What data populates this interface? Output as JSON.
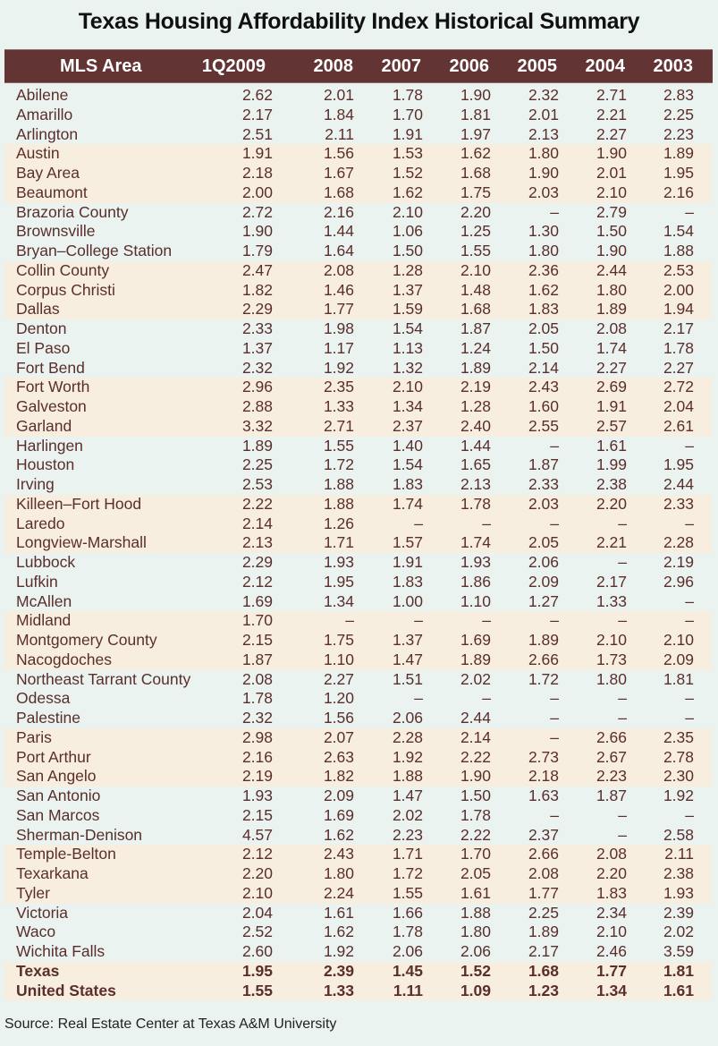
{
  "title": "Texas Housing Affordability Index Historical Summary",
  "header": [
    "MLS Area",
    "1Q2009",
    "2008",
    "2007",
    "2006",
    "2005",
    "2004",
    "2003"
  ],
  "rows": [
    {
      "name": "Abilene",
      "v": [
        "2.62",
        "2.01",
        "1.78",
        "1.90",
        "2.32",
        "2.71",
        "2.83"
      ],
      "band": false
    },
    {
      "name": "Amarillo",
      "v": [
        "2.17",
        "1.84",
        "1.70",
        "1.81",
        "2.01",
        "2.21",
        "2.25"
      ],
      "band": false
    },
    {
      "name": "Arlington",
      "v": [
        "2.51",
        "2.11",
        "1.91",
        "1.97",
        "2.13",
        "2.27",
        "2.23"
      ],
      "band": false
    },
    {
      "name": "Austin",
      "v": [
        "1.91",
        "1.56",
        "1.53",
        "1.62",
        "1.80",
        "1.90",
        "1.89"
      ],
      "band": true
    },
    {
      "name": "Bay Area",
      "v": [
        "2.18",
        "1.67",
        "1.52",
        "1.68",
        "1.90",
        "2.01",
        "1.95"
      ],
      "band": true
    },
    {
      "name": "Beaumont",
      "v": [
        "2.00",
        "1.68",
        "1.62",
        "1.75",
        "2.03",
        "2.10",
        "2.16"
      ],
      "band": true
    },
    {
      "name": "Brazoria County",
      "v": [
        "2.72",
        "2.16",
        "2.10",
        "2.20",
        "–",
        "2.79",
        "–"
      ],
      "band": false
    },
    {
      "name": "Brownsville",
      "v": [
        "1.90",
        "1.44",
        "1.06",
        "1.25",
        "1.30",
        "1.50",
        "1.54"
      ],
      "band": false
    },
    {
      "name": "Bryan–College Station",
      "v": [
        "1.79",
        "1.64",
        "1.50",
        "1.55",
        "1.80",
        "1.90",
        "1.88"
      ],
      "band": false
    },
    {
      "name": "Collin County",
      "v": [
        "2.47",
        "2.08",
        "1.28",
        "2.10",
        "2.36",
        "2.44",
        "2.53"
      ],
      "band": true
    },
    {
      "name": "Corpus Christi",
      "v": [
        "1.82",
        "1.46",
        "1.37",
        "1.48",
        "1.62",
        "1.80",
        "2.00"
      ],
      "band": true
    },
    {
      "name": "Dallas",
      "v": [
        "2.29",
        "1.77",
        "1.59",
        "1.68",
        "1.83",
        "1.89",
        "1.94"
      ],
      "band": true
    },
    {
      "name": "Denton",
      "v": [
        "2.33",
        "1.98",
        "1.54",
        "1.87",
        "2.05",
        "2.08",
        "2.17"
      ],
      "band": false
    },
    {
      "name": "El Paso",
      "v": [
        "1.37",
        "1.17",
        "1.13",
        "1.24",
        "1.50",
        "1.74",
        "1.78"
      ],
      "band": false
    },
    {
      "name": "Fort Bend",
      "v": [
        "2.32",
        "1.92",
        "1.32",
        "1.89",
        "2.14",
        "2.27",
        "2.27"
      ],
      "band": false
    },
    {
      "name": "Fort Worth",
      "v": [
        "2.96",
        "2.35",
        "2.10",
        "2.19",
        "2.43",
        "2.69",
        "2.72"
      ],
      "band": true
    },
    {
      "name": "Galveston",
      "v": [
        "2.88",
        "1.33",
        "1.34",
        "1.28",
        "1.60",
        "1.91",
        "2.04"
      ],
      "band": true
    },
    {
      "name": "Garland",
      "v": [
        "3.32",
        "2.71",
        "2.37",
        "2.40",
        "2.55",
        "2.57",
        "2.61"
      ],
      "band": true
    },
    {
      "name": "Harlingen",
      "v": [
        "1.89",
        "1.55",
        "1.40",
        "1.44",
        "–",
        "1.61",
        "–"
      ],
      "band": false
    },
    {
      "name": "Houston",
      "v": [
        "2.25",
        "1.72",
        "1.54",
        "1.65",
        "1.87",
        "1.99",
        "1.95"
      ],
      "band": false
    },
    {
      "name": "Irving",
      "v": [
        "2.53",
        "1.88",
        "1.83",
        "2.13",
        "2.33",
        "2.38",
        "2.44"
      ],
      "band": false
    },
    {
      "name": "Killeen–Fort Hood",
      "v": [
        "2.22",
        "1.88",
        "1.74",
        "1.78",
        "2.03",
        "2.20",
        "2.33"
      ],
      "band": true
    },
    {
      "name": "Laredo",
      "v": [
        "2.14",
        "1.26",
        "–",
        "–",
        "–",
        "–",
        "–"
      ],
      "band": true
    },
    {
      "name": "Longview-Marshall",
      "v": [
        "2.13",
        "1.71",
        "1.57",
        "1.74",
        "2.05",
        "2.21",
        "2.28"
      ],
      "band": true
    },
    {
      "name": "Lubbock",
      "v": [
        "2.29",
        "1.93",
        "1.91",
        "1.93",
        "2.06",
        "–",
        "2.19"
      ],
      "band": false
    },
    {
      "name": "Lufkin",
      "v": [
        "2.12",
        "1.95",
        "1.83",
        "1.86",
        "2.09",
        "2.17",
        "2.96"
      ],
      "band": false
    },
    {
      "name": "McAllen",
      "v": [
        "1.69",
        "1.34",
        "1.00",
        "1.10",
        "1.27",
        "1.33",
        "–"
      ],
      "band": false
    },
    {
      "name": "Midland",
      "v": [
        "1.70",
        "–",
        "–",
        "–",
        "–",
        "–",
        "–"
      ],
      "band": true
    },
    {
      "name": "Montgomery County",
      "v": [
        "2.15",
        "1.75",
        "1.37",
        "1.69",
        "1.89",
        "2.10",
        "2.10"
      ],
      "band": true
    },
    {
      "name": "Nacogdoches",
      "v": [
        "1.87",
        "1.10",
        "1.47",
        "1.89",
        "2.66",
        "1.73",
        "2.09"
      ],
      "band": true
    },
    {
      "name": "Northeast Tarrant County",
      "v": [
        "2.08",
        "2.27",
        "1.51",
        "2.02",
        "1.72",
        "1.80",
        "1.81"
      ],
      "band": false
    },
    {
      "name": "Odessa",
      "v": [
        "1.78",
        "1.20",
        "–",
        "–",
        "–",
        "–",
        "–"
      ],
      "band": false
    },
    {
      "name": "Palestine",
      "v": [
        "2.32",
        "1.56",
        "2.06",
        "2.44",
        "–",
        "–",
        "–"
      ],
      "band": false
    },
    {
      "name": "Paris",
      "v": [
        "2.98",
        "2.07",
        "2.28",
        "2.14",
        "–",
        "2.66",
        "2.35"
      ],
      "band": true
    },
    {
      "name": "Port Arthur",
      "v": [
        "2.16",
        "2.63",
        "1.92",
        "2.22",
        "2.73",
        "2.67",
        "2.78"
      ],
      "band": true
    },
    {
      "name": "San Angelo",
      "v": [
        "2.19",
        "1.82",
        "1.88",
        "1.90",
        "2.18",
        "2.23",
        "2.30"
      ],
      "band": true
    },
    {
      "name": "San Antonio",
      "v": [
        "1.93",
        "2.09",
        "1.47",
        "1.50",
        "1.63",
        "1.87",
        "1.92"
      ],
      "band": false
    },
    {
      "name": "San Marcos",
      "v": [
        "2.15",
        "1.69",
        "2.02",
        "1.78",
        "–",
        "–",
        "–"
      ],
      "band": false
    },
    {
      "name": "Sherman-Denison",
      "v": [
        "4.57",
        "1.62",
        "2.23",
        "2.22",
        "2.37",
        "–",
        "2.58"
      ],
      "band": false
    },
    {
      "name": "Temple-Belton",
      "v": [
        "2.12",
        "2.43",
        "1.71",
        "1.70",
        "2.66",
        "2.08",
        "2.11"
      ],
      "band": true
    },
    {
      "name": "Texarkana",
      "v": [
        "2.20",
        "1.80",
        "1.72",
        "2.05",
        "2.08",
        "2.20",
        "2.38"
      ],
      "band": true
    },
    {
      "name": "Tyler",
      "v": [
        "2.10",
        "2.24",
        "1.55",
        "1.61",
        "1.77",
        "1.83",
        "1.93"
      ],
      "band": true
    },
    {
      "name": "Victoria",
      "v": [
        "2.04",
        "1.61",
        "1.66",
        "1.88",
        "2.25",
        "2.34",
        "2.39"
      ],
      "band": false
    },
    {
      "name": "Waco",
      "v": [
        "2.52",
        "1.62",
        "1.78",
        "1.80",
        "1.89",
        "2.10",
        "2.02"
      ],
      "band": false
    },
    {
      "name": "Wichita Falls",
      "v": [
        "2.60",
        "1.92",
        "2.06",
        "2.06",
        "2.17",
        "2.46",
        "3.59"
      ],
      "band": false
    }
  ],
  "totals": [
    {
      "name": "Texas",
      "v": [
        "1.95",
        "2.39",
        "1.45",
        "1.52",
        "1.68",
        "1.77",
        "1.81"
      ]
    },
    {
      "name": "United States",
      "v": [
        "1.55",
        "1.33",
        "1.11",
        "1.09",
        "1.23",
        "1.34",
        "1.61"
      ]
    }
  ],
  "source": "Source: Real Estate Center at Texas A&M University",
  "colors": {
    "background": "#eaf3f0",
    "header_bg": "#633434",
    "band": "#f8eedf",
    "text": "#5a2e2b"
  }
}
